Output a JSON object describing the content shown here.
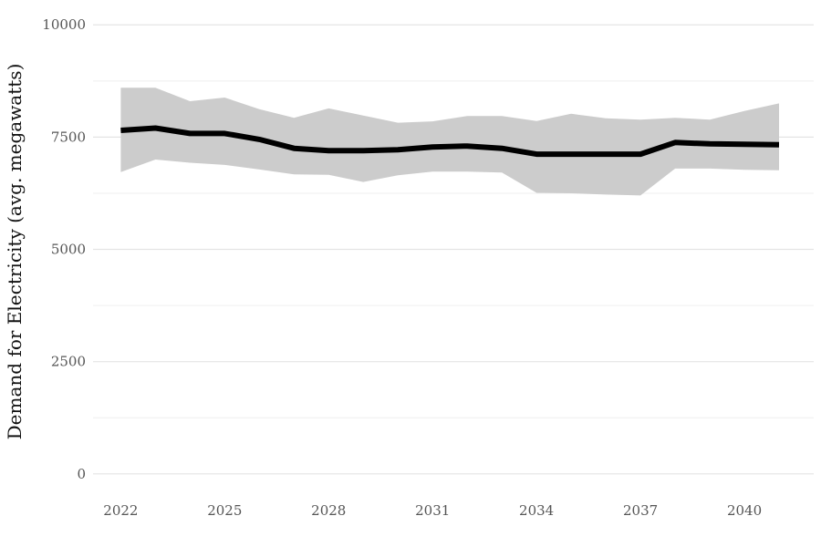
{
  "chart_data": {
    "type": "line",
    "title": "",
    "xlabel": "",
    "ylabel": "Demand for Electricity (avg. megawatts)",
    "xlim": [
      2021.2,
      2042.0
    ],
    "ylim": [
      -450,
      10350
    ],
    "x_ticks": [
      2022,
      2025,
      2028,
      2031,
      2034,
      2037,
      2040
    ],
    "y_ticks": [
      0,
      2500,
      5000,
      7500,
      10000
    ],
    "y_minor_ticks": [
      1250,
      3750,
      6250,
      8750
    ],
    "grid": true,
    "legend": "none",
    "colors": {
      "line": "#000000",
      "band": "#cccccc",
      "grid": "#e4e4e4"
    },
    "x": [
      2022,
      2023,
      2024,
      2025,
      2026,
      2027,
      2028,
      2029,
      2030,
      2031,
      2032,
      2033,
      2034,
      2035,
      2036,
      2037,
      2038,
      2039,
      2040,
      2041
    ],
    "series": [
      {
        "values": [
          7650,
          7700,
          7580,
          7580,
          7450,
          7250,
          7200,
          7200,
          7220,
          7280,
          7300,
          7250,
          7120,
          7120,
          7120,
          7120,
          7380,
          7350,
          7340,
          7330
        ]
      }
    ],
    "band": {
      "upper": [
        8600,
        8600,
        8300,
        8380,
        8120,
        7930,
        8140,
        7980,
        7820,
        7850,
        7970,
        7970,
        7860,
        8020,
        7920,
        7890,
        7930,
        7890,
        8080,
        8250
      ],
      "lower": [
        6720,
        7000,
        6930,
        6880,
        6780,
        6670,
        6660,
        6500,
        6650,
        6730,
        6730,
        6710,
        6260,
        6250,
        6220,
        6200,
        6800,
        6800,
        6770,
        6760
      ]
    }
  }
}
